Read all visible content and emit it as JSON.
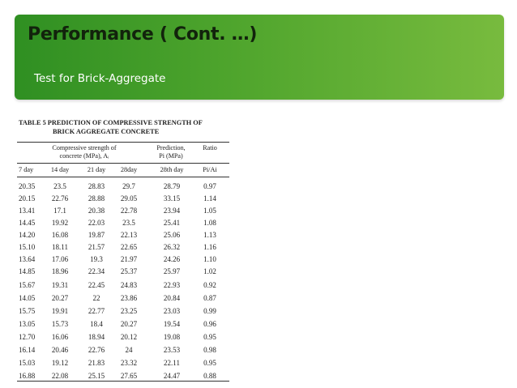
{
  "slide": {
    "title": "Performance ( Cont. …)",
    "subtitle": "Test for Brick-Aggregate"
  },
  "table": {
    "caption_line1": "TABLE 5 PREDICTION OF COMPRESSIVE STRENGTH OF",
    "caption_line2": "BRICK AGGREGATE CONCRETE",
    "group_headers": {
      "strength_line1": "Compressive strength of",
      "strength_line2": "concrete (MPa), Aᵢ",
      "prediction_line1": "Prediction,",
      "prediction_line2": "Pi (MPa)",
      "ratio": "Ratio"
    },
    "columns": [
      "7 day",
      "14 day",
      "21 day",
      "28day",
      "28th day",
      "Pi/Ai"
    ],
    "rows": [
      [
        "20.35",
        "23.5",
        "28.83",
        "29.7",
        "28.79",
        "0.97"
      ],
      [
        "20.15",
        "22.76",
        "28.88",
        "29.05",
        "33.15",
        "1.14"
      ],
      [
        "13.41",
        "17.1",
        "20.38",
        "22.78",
        "23.94",
        "1.05"
      ],
      [
        "14.45",
        "19.92",
        "22.03",
        "23.5",
        "25.41",
        "1.08"
      ],
      [
        "14.20",
        "16.08",
        "19.87",
        "22.13",
        "25.06",
        "1.13"
      ],
      [
        "15.10",
        "18.11",
        "21.57",
        "22.65",
        "26.32",
        "1.16"
      ],
      [
        "13.64",
        "17.06",
        "19.3",
        "21.97",
        "24.26",
        "1.10"
      ],
      [
        "14.85",
        "18.96",
        "22.34",
        "25.37",
        "25.97",
        "1.02"
      ],
      [
        "15.67",
        "19.31",
        "22.45",
        "24.83",
        "22.93",
        "0.92"
      ],
      [
        "14.05",
        "20.27",
        "22",
        "23.86",
        "20.84",
        "0.87"
      ],
      [
        "15.75",
        "19.91",
        "22.77",
        "23.25",
        "23.03",
        "0.99"
      ],
      [
        "13.05",
        "15.73",
        "18.4",
        "20.27",
        "19.54",
        "0.96"
      ],
      [
        "12.70",
        "16.06",
        "18.94",
        "20.12",
        "19.08",
        "0.95"
      ],
      [
        "16.14",
        "20.46",
        "22.76",
        "24",
        "23.53",
        "0.98"
      ],
      [
        "15.03",
        "19.12",
        "21.83",
        "23.32",
        "22.11",
        "0.95"
      ],
      [
        "16.88",
        "22.08",
        "25.15",
        "27.65",
        "24.47",
        "0.88"
      ]
    ]
  },
  "colors": {
    "header_green_dark": "#2f8f22",
    "header_green_light": "#78bb3e",
    "title_text": "#12230c",
    "subtitle_text": "#ffffff"
  }
}
